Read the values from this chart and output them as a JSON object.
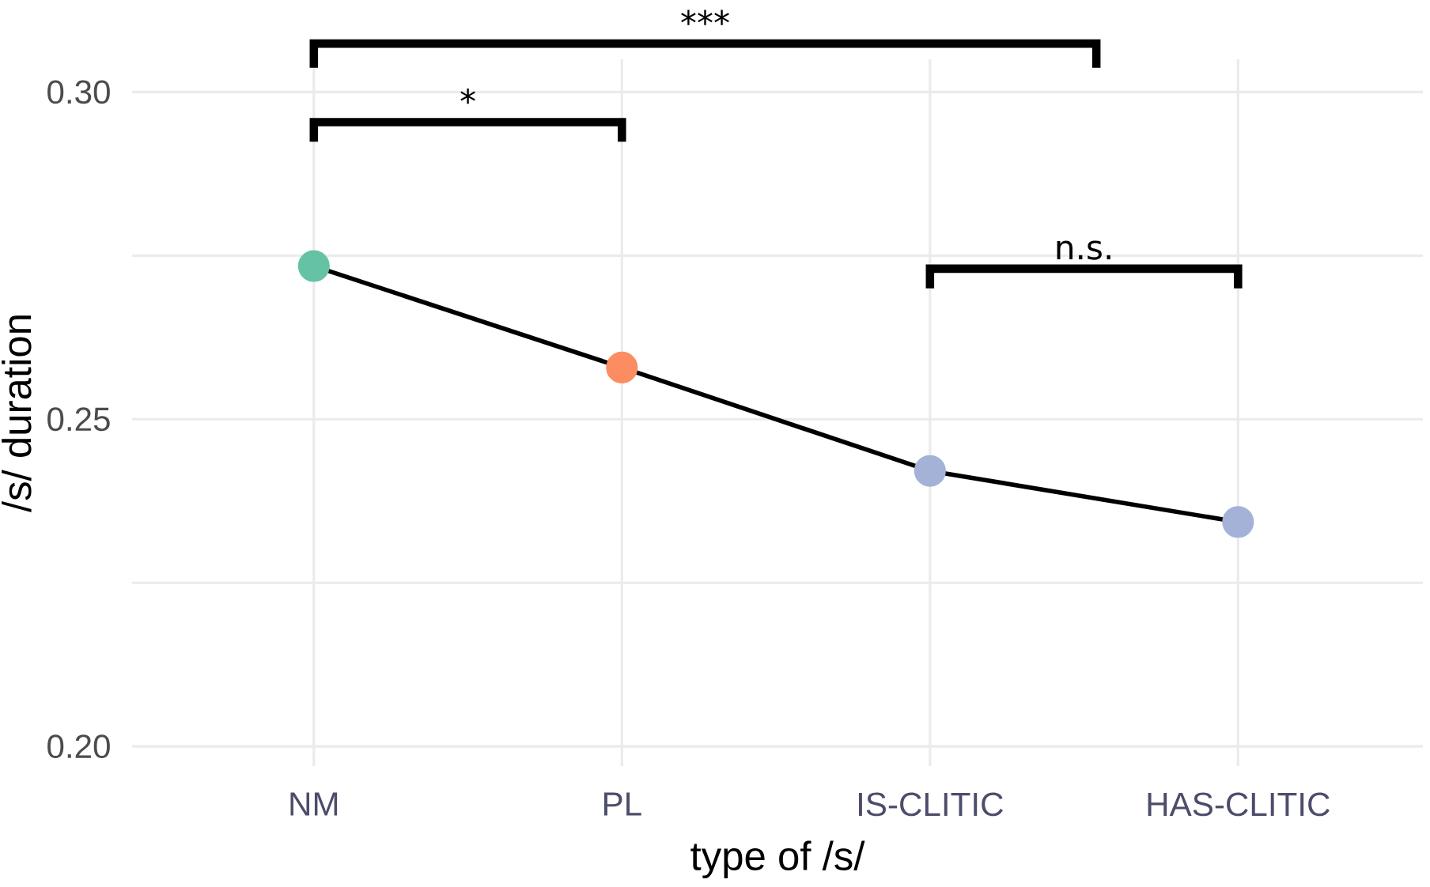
{
  "chart_data": {
    "type": "line",
    "xlabel": "type of /s/",
    "ylabel": "/s/ duration",
    "categories": [
      "NM",
      "PL",
      "IS-CLITIC",
      "HAS-CLITIC"
    ],
    "values": [
      0.2734,
      0.2579,
      0.2421,
      0.2343
    ],
    "color": "#000000",
    "colors": [
      "#66c2a5",
      "#fc8d62",
      "#a4b2d8",
      "#a4b2d8"
    ],
    "marker": "circle",
    "line_style": "solid",
    "ylim": [
      0.197,
      0.305
    ],
    "yticks": [
      {
        "value": 0.2,
        "label": "0.20"
      },
      {
        "value": 0.225,
        "label": null
      },
      {
        "value": 0.25,
        "label": "0.25"
      },
      {
        "value": 0.275,
        "label": null
      },
      {
        "value": 0.3,
        "label": "0.30"
      }
    ],
    "grid": true,
    "annotations": [
      "***",
      "*",
      "n.s."
    ]
  }
}
